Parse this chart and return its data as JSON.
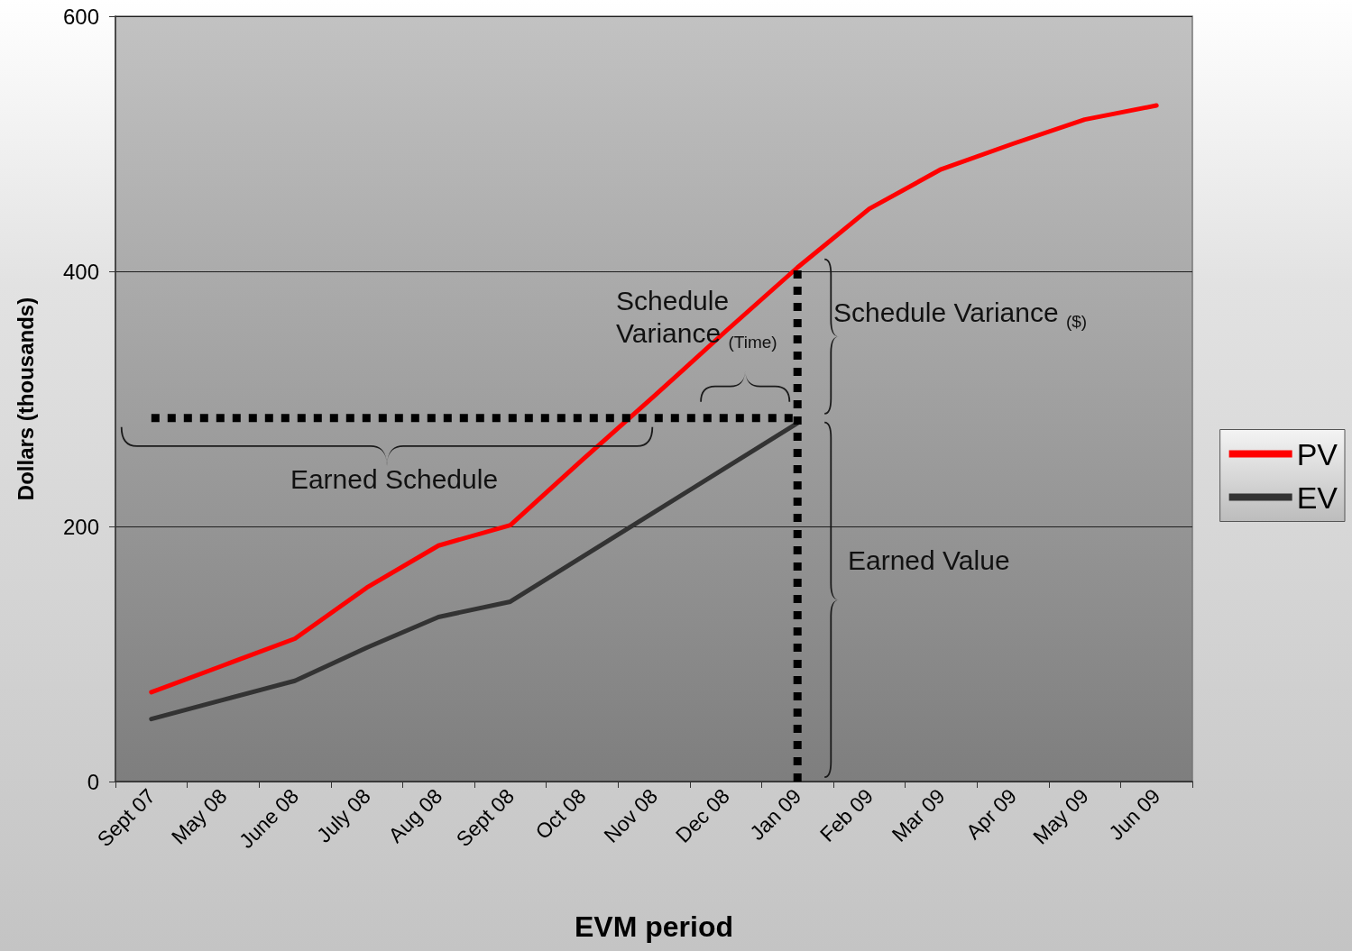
{
  "chart_data": {
    "type": "line",
    "xlabel": "EVM period",
    "ylabel": "Dollars (thousands)",
    "categories": [
      "Sept 07",
      "May 08",
      "June 08",
      "July 08",
      "Aug 08",
      "Sept 08",
      "Oct 08",
      "Nov 08",
      "Dec 08",
      "Jan 09",
      "Feb 09",
      "Mar 09",
      "Apr 09",
      "May 09",
      "Jun 09"
    ],
    "series": [
      {
        "name": "PV",
        "color": "#ff0000",
        "values": [
          70,
          91,
          112,
          152,
          185,
          201,
          252,
          302,
          353,
          403,
          449,
          480,
          500,
          519,
          530
        ]
      },
      {
        "name": "EV",
        "color": "#333333",
        "values": [
          49,
          64,
          79,
          105,
          129,
          141,
          176,
          211,
          246,
          281,
          null,
          null,
          null,
          null,
          null
        ]
      },
      {
        "type": "line",
        "color": "#000000",
        "line_style": "dotted",
        "x": [
          "Sept 07",
          "Jan 09"
        ],
        "values": [
          285,
          285
        ]
      },
      {
        "type": "line",
        "color": "#000000",
        "line_style": "dotted",
        "x": [
          "Jan 09",
          "Jan 09"
        ],
        "values": [
          0,
          403
        ]
      }
    ],
    "ylim": [
      0,
      600
    ],
    "yticks": [
      0,
      200,
      400,
      600
    ],
    "grid": "y",
    "legend": "right",
    "marker": "none",
    "annotations": [
      "Earned Schedule",
      "Schedule Variance $_{(Time)}$",
      "Schedule Variance $_{($)}$",
      "Earned Value"
    ]
  }
}
